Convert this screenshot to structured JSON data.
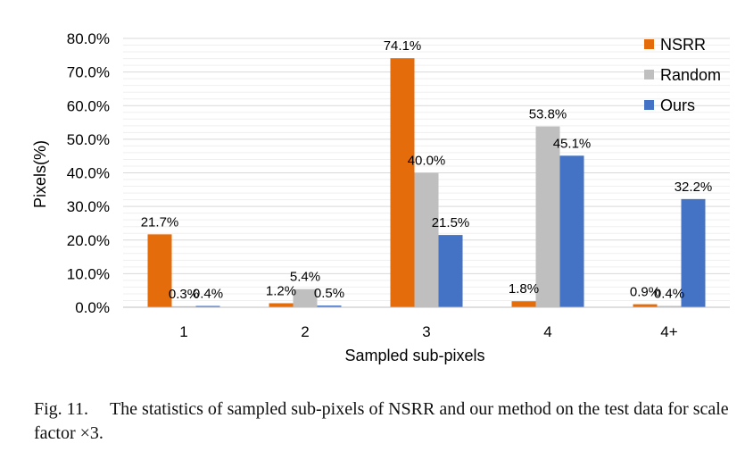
{
  "chart_data": {
    "type": "bar",
    "categories": [
      "1",
      "2",
      "3",
      "4",
      "4+"
    ],
    "series": [
      {
        "name": "NSRR",
        "color": "#E46C0A",
        "values": [
          21.7,
          1.2,
          74.1,
          1.8,
          0.9
        ]
      },
      {
        "name": "Random",
        "color": "#BFBFBF",
        "values": [
          0.3,
          5.4,
          40.0,
          53.8,
          0.4
        ]
      },
      {
        "name": "Ours",
        "color": "#4472C4",
        "values": [
          0.4,
          0.5,
          21.5,
          45.1,
          32.2
        ]
      }
    ],
    "data_labels": [
      [
        "21.7%",
        "1.2%",
        "74.1%",
        "1.8%",
        "0.9%"
      ],
      [
        "0.3%",
        "5.4%",
        "40.0%",
        "53.8%",
        "0.4%"
      ],
      [
        "0.4%",
        "0.5%",
        "21.5%",
        "45.1%",
        "32.2%"
      ]
    ],
    "xlabel": "Sampled sub-pixels",
    "ylabel": "Pixels(%)",
    "ylim": [
      0,
      80
    ],
    "yticks": [
      "0.0%",
      "10.0%",
      "20.0%",
      "30.0%",
      "40.0%",
      "50.0%",
      "60.0%",
      "70.0%",
      "80.0%"
    ],
    "grid": true,
    "legend_position": "top-right"
  },
  "caption": {
    "fig_label": "Fig. 11.",
    "text": "The statistics of sampled sub-pixels of NSRR and our method on the test data for scale factor ×3."
  }
}
